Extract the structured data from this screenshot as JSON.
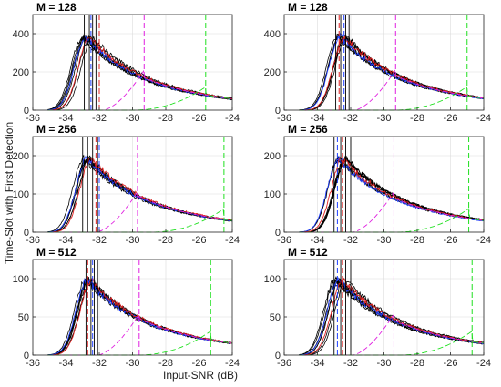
{
  "figure": {
    "ylabel": "Time-Slot with First Detection",
    "xlabel": "Input-SNR (dB)"
  },
  "colors": {
    "black": "#000000",
    "blue": "#1f3fff",
    "red": "#e02020",
    "magenta": "#e020e0",
    "green": "#20e020"
  },
  "chart_data": [
    {
      "type": "line",
      "title": "M = 128",
      "row": 0,
      "col": 0,
      "xlim": [
        -36,
        -24
      ],
      "xticks": [
        -36,
        -34,
        -32,
        -30,
        -28,
        -26,
        -24
      ],
      "ylim": [
        0,
        500
      ],
      "yticks": [
        0,
        200,
        400
      ],
      "grid": true,
      "peak_x": -32.7,
      "peak_y": 380,
      "black_vlines": [
        -32.9,
        -32.6,
        -32.4,
        -32.2
      ],
      "blue_vline": -32.5,
      "red_vline": -32.0,
      "magenta_vline": -29.3,
      "green_vline": -25.6
    },
    {
      "type": "line",
      "title": "M = 128",
      "row": 0,
      "col": 1,
      "xlim": [
        -36,
        -24
      ],
      "xticks": [
        -36,
        -34,
        -32,
        -30,
        -28,
        -26,
        -24
      ],
      "ylim": [
        0,
        500
      ],
      "yticks": [
        0,
        200,
        400
      ],
      "grid": true,
      "peak_x": -32.5,
      "peak_y": 385,
      "black_vlines": [
        -32.9,
        -32.6,
        -32.3,
        -32.1
      ],
      "blue_vline": -32.4,
      "red_vline": -32.7,
      "magenta_vline": -29.3,
      "green_vline": -25.0
    },
    {
      "type": "line",
      "title": "M = 256",
      "row": 1,
      "col": 0,
      "xlim": [
        -36,
        -24
      ],
      "xticks": [
        -36,
        -34,
        -32,
        -30,
        -28,
        -26,
        -24
      ],
      "ylim": [
        0,
        250
      ],
      "yticks": [
        0,
        100,
        200
      ],
      "grid": true,
      "peak_x": -32.6,
      "peak_y": 192,
      "black_vlines": [
        -33.0,
        -32.7,
        -32.4,
        -32.1
      ],
      "blue_vline": -32.0,
      "red_vline": -32.2,
      "magenta_vline": -29.7,
      "green_vline": -24.5
    },
    {
      "type": "line",
      "title": "M = 256",
      "row": 1,
      "col": 1,
      "xlim": [
        -36,
        -24
      ],
      "xticks": [
        -36,
        -34,
        -32,
        -30,
        -28,
        -26,
        -24
      ],
      "ylim": [
        0,
        250
      ],
      "yticks": [
        0,
        100,
        200
      ],
      "grid": true,
      "peak_x": -32.6,
      "peak_y": 192,
      "black_vlines": [
        -33.0,
        -32.6,
        -32.3,
        -32.0
      ],
      "blue_vline": -32.8,
      "red_vline": -32.5,
      "magenta_vline": -29.4,
      "green_vline": -24.9
    },
    {
      "type": "line",
      "title": "M = 512",
      "row": 2,
      "col": 0,
      "xlim": [
        -36,
        -24
      ],
      "xticks": [
        -36,
        -34,
        -32,
        -30,
        -28,
        -26,
        -24
      ],
      "ylim": [
        0,
        125
      ],
      "yticks": [
        0,
        50,
        100
      ],
      "grid": true,
      "peak_x": -32.6,
      "peak_y": 98,
      "black_vlines": [
        -32.8,
        -32.5,
        -32.3,
        -32.1
      ],
      "blue_vline": -32.4,
      "red_vline": -32.7,
      "magenta_vline": -29.6,
      "green_vline": -25.3
    },
    {
      "type": "line",
      "title": "M = 512",
      "row": 2,
      "col": 1,
      "xlim": [
        -36,
        -24
      ],
      "xticks": [
        -36,
        -34,
        -32,
        -30,
        -28,
        -26,
        -24
      ],
      "ylim": [
        0,
        125
      ],
      "yticks": [
        0,
        50,
        100
      ],
      "grid": true,
      "peak_x": -32.6,
      "peak_y": 98,
      "black_vlines": [
        -33.0,
        -32.6,
        -32.3,
        -32.0
      ],
      "blue_vline": -32.8,
      "red_vline": -32.5,
      "magenta_vline": -29.4,
      "green_vline": -24.7
    }
  ]
}
